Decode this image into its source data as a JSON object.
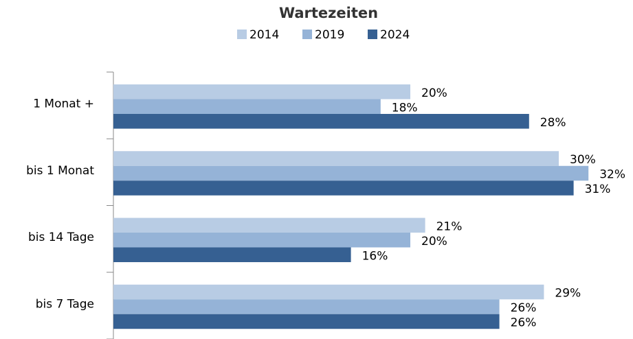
{
  "chart_data": {
    "type": "hbar",
    "title": "Wartezeiten",
    "categories": [
      "1 Monat +",
      "bis 1 Monat",
      "bis 14 Tage",
      "bis 7 Tage"
    ],
    "series": [
      {
        "name": "2014",
        "color": "#b8cce4",
        "values": [
          20,
          30,
          21,
          29
        ],
        "value_labels": [
          "20%",
          "30%",
          "21%",
          "29%"
        ]
      },
      {
        "name": "2019",
        "color": "#95b3d7",
        "values": [
          18,
          32,
          20,
          26
        ],
        "value_labels": [
          "18%",
          "32%",
          "20%",
          "26%"
        ]
      },
      {
        "name": "2024",
        "color": "#366092",
        "values": [
          28,
          31,
          16,
          26
        ],
        "value_labels": [
          "28%",
          "31%",
          "16%",
          "26%"
        ]
      }
    ],
    "xlim": [
      0,
      35
    ],
    "legend": "top"
  }
}
